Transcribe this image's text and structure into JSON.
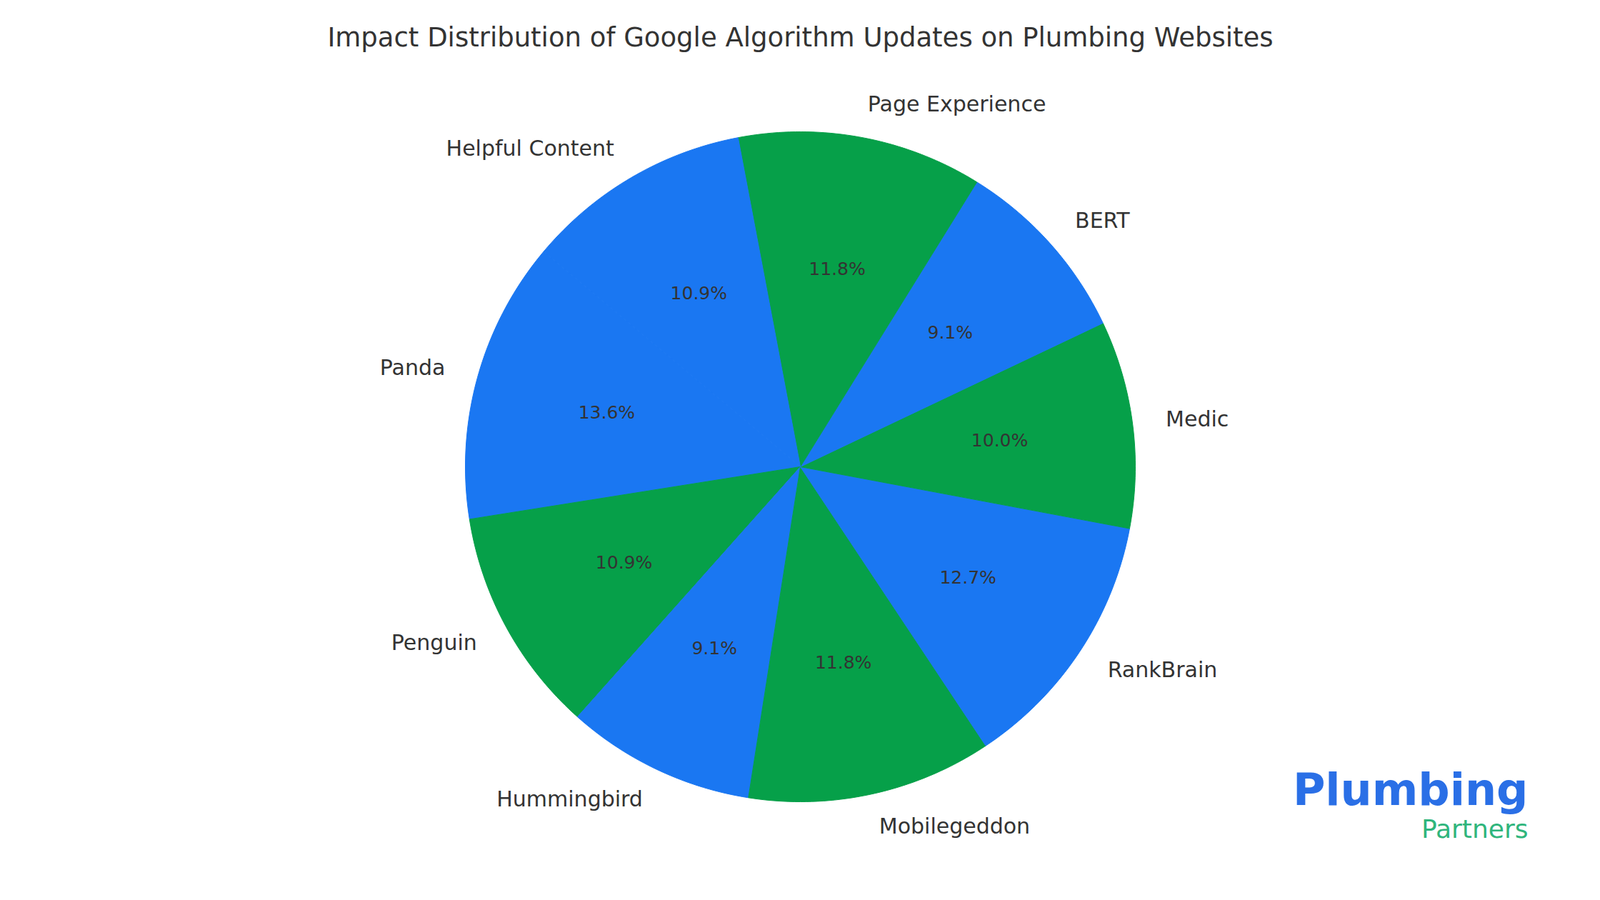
{
  "chart_data": {
    "type": "pie",
    "title": "Impact Distribution of Google Algorithm Updates on Plumbing Websites",
    "categories": [
      "Panda",
      "Penguin",
      "Hummingbird",
      "Mobilegeddon",
      "RankBrain",
      "Medic",
      "BERT",
      "Page Experience",
      "Helpful Content"
    ],
    "values": [
      13.6,
      10.9,
      9.1,
      11.8,
      12.7,
      10.0,
      9.1,
      11.8,
      10.9
    ],
    "value_labels": [
      "13.6%",
      "10.9%",
      "9.1%",
      "11.8%",
      "12.7%",
      "10.0%",
      "9.1%",
      "11.8%",
      "10.9%"
    ],
    "colors": [
      "#1a77f2",
      "#06a049",
      "#1a77f2",
      "#06a049",
      "#1a77f2",
      "#06a049",
      "#1a77f2",
      "#06a049",
      "#1a77f2"
    ],
    "data_labels": true,
    "annotations": [
      "Plumbing",
      "Partners"
    ]
  }
}
